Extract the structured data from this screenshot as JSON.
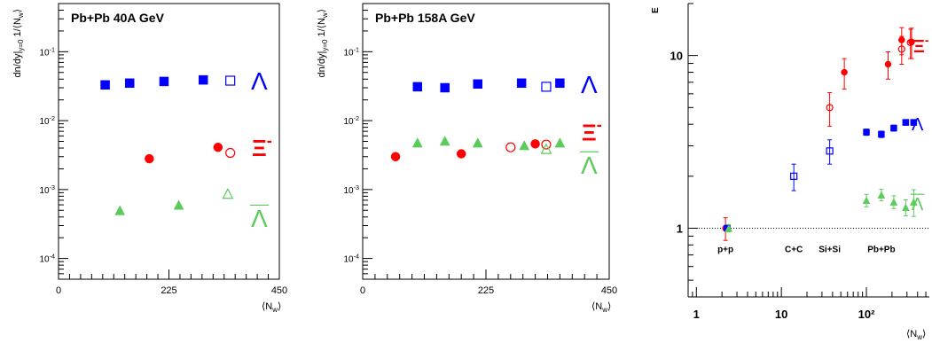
{
  "chart_data": [
    {
      "type": "scatter",
      "title": "Pb+Pb 40A GeV",
      "xlabel": "⟨N_w⟩",
      "ylabel": "dn/dy|y=0 1/⟨N_w⟩",
      "xlim": [
        0,
        450
      ],
      "ylim": [
        5e-05,
        0.5
      ],
      "yscale": "log",
      "x_ticks": [
        0,
        225,
        450
      ],
      "y_ticks": [
        0.0001,
        0.001,
        0.01,
        0.1
      ],
      "y_tick_labels": [
        "10^-4",
        "10^-3",
        "10^-2",
        "10^-1"
      ],
      "series": [
        {
          "name": "Λ",
          "color": "#0000ff",
          "marker": "square-filled",
          "x": [
            95,
            145,
            215,
            295
          ],
          "y": [
            0.033,
            0.035,
            0.037,
            0.039
          ]
        },
        {
          "name": "",
          "color": "#0000ff",
          "marker": "square-open",
          "x": [
            350
          ],
          "y": [
            0.038
          ]
        },
        {
          "name": "Ξ⁻",
          "color": "#ff0000",
          "marker": "circle-filled",
          "x": [
            185,
            325
          ],
          "y": [
            0.0028,
            0.0041
          ]
        },
        {
          "name": "",
          "color": "#ff0000",
          "marker": "circle-open",
          "x": [
            350
          ],
          "y": [
            0.0034
          ]
        },
        {
          "name": "Λ̄",
          "color": "#5ccb5c",
          "marker": "triangle-filled",
          "x": [
            125,
            245
          ],
          "y": [
            0.0005,
            0.0006
          ]
        },
        {
          "name": "",
          "color": "#5ccb5c",
          "marker": "triangle-open",
          "x": [
            345
          ],
          "y": [
            0.00087
          ]
        }
      ]
    },
    {
      "type": "scatter",
      "title": "Pb+Pb 158A GeV",
      "xlabel": "⟨N_w⟩",
      "ylabel": "dn/dy|y=0 1/⟨N_w⟩",
      "xlim": [
        0,
        450
      ],
      "ylim": [
        5e-05,
        0.5
      ],
      "yscale": "log",
      "x_ticks": [
        0,
        225,
        450
      ],
      "y_ticks": [
        0.0001,
        0.001,
        0.01,
        0.1
      ],
      "y_tick_labels": [
        "10^-4",
        "10^-3",
        "10^-2",
        "10^-1"
      ],
      "series": [
        {
          "name": "Λ",
          "color": "#0000ff",
          "marker": "square-filled",
          "x": [
            100,
            150,
            210,
            290,
            360
          ],
          "y": [
            0.031,
            0.03,
            0.034,
            0.035,
            0.035
          ]
        },
        {
          "name": "",
          "color": "#0000ff",
          "marker": "square-open",
          "x": [
            335
          ],
          "y": [
            0.031
          ]
        },
        {
          "name": "Ξ⁻",
          "color": "#ff0000",
          "marker": "circle-filled",
          "x": [
            60,
            180,
            315
          ],
          "y": [
            0.003,
            0.0033,
            0.0046
          ]
        },
        {
          "name": "",
          "color": "#ff0000",
          "marker": "circle-open",
          "x": [
            270,
            335
          ],
          "y": [
            0.0041,
            0.0045
          ]
        },
        {
          "name": "Λ̄",
          "color": "#5ccb5c",
          "marker": "triangle-filled",
          "x": [
            100,
            150,
            210,
            295,
            360
          ],
          "y": [
            0.0048,
            0.0051,
            0.0048,
            0.0044,
            0.0048
          ]
        },
        {
          "name": "",
          "color": "#5ccb5c",
          "marker": "triangle-open",
          "x": [
            335
          ],
          "y": [
            0.0039
          ]
        }
      ]
    },
    {
      "type": "scatter",
      "title": "",
      "ylabel": "E",
      "xlabel": "⟨N_w⟩",
      "xscale": "log",
      "yscale": "log",
      "xlim": [
        0.8,
        550
      ],
      "ylim": [
        0.4,
        20
      ],
      "x_ticks": [
        1,
        10,
        100
      ],
      "x_tick_labels": [
        "1",
        "10",
        "10²"
      ],
      "y_ticks": [
        1,
        10
      ],
      "y_tick_labels": [
        "1",
        "10"
      ],
      "reference_line": 1,
      "system_labels": [
        {
          "text": "p+p",
          "x": 2.2
        },
        {
          "text": "C+C",
          "x": 14
        },
        {
          "text": "Si+Si",
          "x": 37
        },
        {
          "text": "Pb+Pb",
          "x": 150
        }
      ],
      "series": [
        {
          "name": "Ξ⁻",
          "color": "#ff0000",
          "marker": "circle-filled",
          "x": [
            2.2,
            55,
            180,
            260,
            340
          ],
          "y": [
            1.0,
            8.0,
            8.9,
            12.3,
            12.0
          ],
          "err": [
            0.15,
            1.6,
            1.6,
            2.2,
            2.4
          ]
        },
        {
          "name": "",
          "color": "#ff0000",
          "marker": "circle-open",
          "x": [
            37,
            260,
            330
          ],
          "y": [
            5.0,
            10.9,
            11.9
          ],
          "err": [
            1.1,
            2.0,
            2.3
          ]
        },
        {
          "name": "Λ",
          "color": "#0000ff",
          "marker": "square-filled",
          "x": [
            2.3,
            100,
            150,
            210,
            290,
            360
          ],
          "y": [
            1.0,
            3.6,
            3.5,
            3.8,
            4.1,
            4.1
          ],
          "err": [
            0.04,
            0.15,
            0.15,
            0.15,
            0.15,
            0.15
          ]
        },
        {
          "name": "",
          "color": "#0000ff",
          "marker": "square-open",
          "x": [
            14,
            37
          ],
          "y": [
            2.0,
            2.8
          ],
          "err": [
            0.35,
            0.45
          ]
        },
        {
          "name": "Λ̄",
          "color": "#5ccb5c",
          "marker": "triangle-filled",
          "x": [
            2.4,
            100,
            150,
            210,
            290,
            360
          ],
          "y": [
            1.0,
            1.45,
            1.56,
            1.42,
            1.32,
            1.42
          ],
          "err": [
            0.05,
            0.12,
            0.12,
            0.12,
            0.14,
            0.25
          ]
        }
      ]
    }
  ]
}
